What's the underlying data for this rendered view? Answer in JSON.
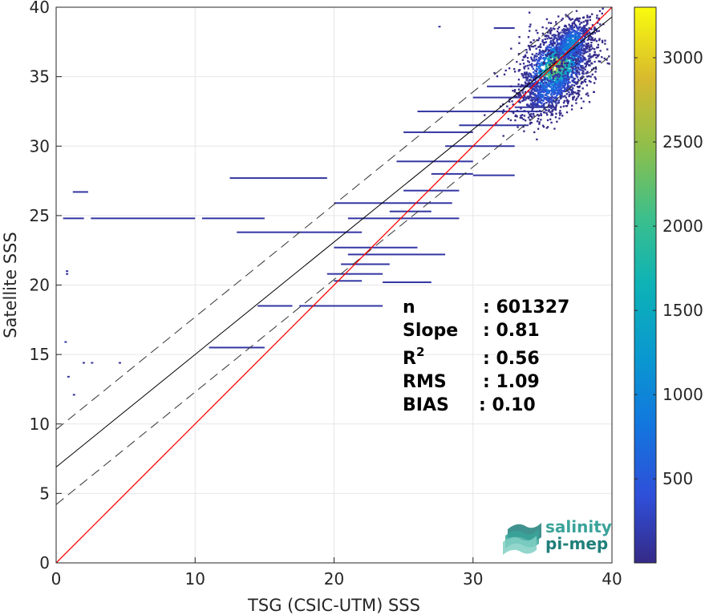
{
  "chart_data": {
    "type": "heatmap",
    "xlabel": "TSG (CSIC-UTM) SSS",
    "ylabel": "Satellite SSS",
    "xlim": [
      0,
      40
    ],
    "ylim": [
      0,
      40
    ],
    "xticks": [
      0,
      10,
      20,
      30,
      40
    ],
    "yticks": [
      0,
      5,
      10,
      15,
      20,
      25,
      30,
      35,
      40
    ],
    "grid": true,
    "colorbar": {
      "range": [
        1,
        3300
      ],
      "ticks": [
        500,
        1000,
        1500,
        2000,
        2500,
        3000
      ],
      "colormap": "parula"
    },
    "lines": {
      "identity": {
        "slope": 1.0,
        "intercept": 0.0,
        "color": "#ff0000"
      },
      "regression": {
        "slope": 0.81,
        "intercept": 6.9,
        "color": "#000000"
      },
      "regression_upper": {
        "slope": 0.81,
        "intercept": 9.6,
        "style": "dashed"
      },
      "regression_lower": {
        "slope": 0.81,
        "intercept": 4.2,
        "style": "dashed"
      }
    },
    "clusters": [
      {
        "x": 36.0,
        "y": 35.8,
        "sx": 1.3,
        "sy": 1.6,
        "n": 1700,
        "peak": 3300
      },
      {
        "x": 37.0,
        "y": 37.5,
        "sx": 0.8,
        "sy": 1.0,
        "n": 500,
        "peak": 1500
      },
      {
        "x": 35.5,
        "y": 34.0,
        "sx": 1.4,
        "sy": 1.0,
        "n": 400,
        "peak": 900
      }
    ],
    "streaks": [
      [
        0.5,
        2.0,
        24.8
      ],
      [
        2.5,
        10.0,
        24.8
      ],
      [
        10.5,
        15.0,
        24.8
      ],
      [
        1.2,
        2.3,
        26.7
      ],
      [
        12.5,
        19.5,
        27.7
      ],
      [
        13.0,
        22.0,
        23.8
      ],
      [
        20.0,
        28.5,
        25.9
      ],
      [
        21.0,
        29.0,
        24.8
      ],
      [
        26.0,
        35.0,
        32.5
      ],
      [
        28.0,
        33.0,
        30.0
      ],
      [
        29.0,
        34.0,
        31.5
      ],
      [
        25.0,
        29.0,
        26.8
      ],
      [
        20.0,
        26.0,
        22.7
      ],
      [
        21.0,
        28.0,
        22.2
      ],
      [
        20.5,
        24.0,
        21.5
      ],
      [
        19.5,
        23.5,
        20.8
      ],
      [
        20.0,
        22.0,
        20.3
      ],
      [
        23.5,
        27.0,
        20.2
      ],
      [
        14.5,
        17.0,
        18.5
      ],
      [
        17.5,
        23.5,
        18.5
      ],
      [
        11.0,
        15.0,
        15.5
      ],
      [
        24.5,
        30.0,
        28.9
      ],
      [
        27.0,
        30.0,
        28.0
      ],
      [
        30.0,
        33.0,
        27.9
      ],
      [
        24.0,
        27.0,
        25.3
      ],
      [
        25.0,
        30.0,
        31.0
      ],
      [
        30.0,
        36.0,
        33.5
      ],
      [
        31.0,
        35.0,
        34.3
      ],
      [
        33.0,
        36.0,
        32.8
      ],
      [
        31.5,
        33.0,
        38.5
      ]
    ],
    "sparse_points": [
      [
        0.7,
        20.8
      ],
      [
        0.7,
        21.0
      ],
      [
        0.6,
        15.9
      ],
      [
        0.8,
        13.4
      ],
      [
        1.2,
        12.1
      ],
      [
        1.9,
        14.4
      ],
      [
        2.5,
        14.4
      ],
      [
        4.5,
        14.4
      ],
      [
        34.0,
        38.6
      ],
      [
        27.5,
        38.6
      ],
      [
        38.0,
        34.8
      ]
    ],
    "stats": [
      {
        "label": "n",
        "value": ": 601327"
      },
      {
        "label": "Slope",
        "value": ": 0.81"
      },
      {
        "label": "R",
        "sup": "2",
        "value": ": 0.56"
      },
      {
        "label": "RMS",
        "value": ": 1.09"
      },
      {
        "label": "BIAS",
        "value": ": 0.10"
      }
    ]
  },
  "logo": {
    "line1": "salinity",
    "line2": "pi-mep",
    "color": "#3aa39a",
    "color_dark": "#1f7f7a"
  }
}
